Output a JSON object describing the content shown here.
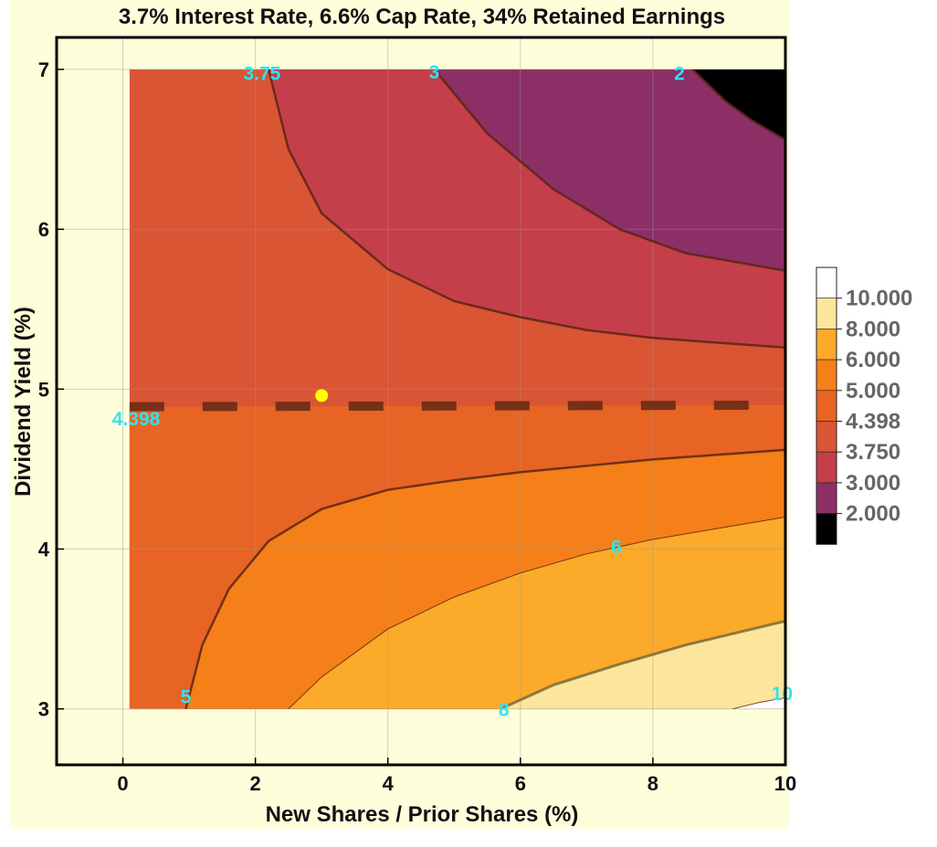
{
  "chart_data": {
    "type": "contour",
    "title": "3.7% Interest Rate, 6.6% Cap Rate, 34% Retained Earnings",
    "xlabel": "New Shares / Prior Shares (%)",
    "ylabel": "Dividend Yield (%)",
    "xlim": [
      -1,
      10
    ],
    "ylim": [
      2.65,
      7.2
    ],
    "data_x_range": [
      0.1,
      10
    ],
    "data_y_range": [
      3,
      7
    ],
    "x_ticks": [
      0,
      2,
      4,
      6,
      8,
      10
    ],
    "y_ticks": [
      3,
      4,
      5,
      6,
      7
    ],
    "grid": true,
    "legend_placement": "right",
    "levels": [
      {
        "label": "10.000",
        "color": "#ffffff"
      },
      {
        "label": "8.000",
        "color": "#fde59b"
      },
      {
        "label": "6.000",
        "color": "#fbaa2a"
      },
      {
        "label": "5.000",
        "color": "#f57f18"
      },
      {
        "label": "4.398",
        "color": "#e76424"
      },
      {
        "label": "3.750",
        "color": "#d95533"
      },
      {
        "label": "3.000",
        "color": "#c43f49"
      },
      {
        "label": "2.000",
        "color": "#8b2f66"
      },
      {
        "label": "",
        "color": "#000000"
      }
    ],
    "contours": [
      {
        "label": "2",
        "points": [
          [
            8.6,
            7
          ],
          [
            9.1,
            6.8
          ],
          [
            9.5,
            6.68
          ],
          [
            10,
            6.56
          ]
        ]
      },
      {
        "label": "3",
        "points": [
          [
            4.7,
            7
          ],
          [
            5.5,
            6.6
          ],
          [
            6.5,
            6.25
          ],
          [
            7.5,
            6.0
          ],
          [
            8.5,
            5.85
          ],
          [
            10,
            5.74
          ]
        ]
      },
      {
        "label": "3.75",
        "points": [
          [
            2.2,
            7
          ],
          [
            2.5,
            6.5
          ],
          [
            3,
            6.1
          ],
          [
            4,
            5.75
          ],
          [
            5,
            5.55
          ],
          [
            6,
            5.45
          ],
          [
            7,
            5.37
          ],
          [
            8,
            5.32
          ],
          [
            10,
            5.26
          ]
        ]
      },
      {
        "label": "4.398",
        "dashed": true,
        "points": [
          [
            0.1,
            4.89
          ],
          [
            10,
            4.9
          ]
        ]
      },
      {
        "label": "5",
        "points": [
          [
            0.95,
            3
          ],
          [
            1.2,
            3.4
          ],
          [
            1.6,
            3.75
          ],
          [
            2.2,
            4.05
          ],
          [
            3,
            4.25
          ],
          [
            4,
            4.37
          ],
          [
            5,
            4.43
          ],
          [
            6,
            4.48
          ],
          [
            7,
            4.52
          ],
          [
            8,
            4.56
          ],
          [
            10,
            4.62
          ]
        ]
      },
      {
        "label": "6",
        "points": [
          [
            2.5,
            3
          ],
          [
            3,
            3.2
          ],
          [
            4,
            3.5
          ],
          [
            5,
            3.7
          ],
          [
            6,
            3.85
          ],
          [
            7,
            3.97
          ],
          [
            8,
            4.06
          ],
          [
            10,
            4.2
          ]
        ]
      },
      {
        "label": "8",
        "points": [
          [
            5.7,
            3
          ],
          [
            6.5,
            3.15
          ],
          [
            7.5,
            3.28
          ],
          [
            8.5,
            3.4
          ],
          [
            10,
            3.55
          ]
        ]
      },
      {
        "label": "10",
        "points": [
          [
            9.2,
            3
          ],
          [
            9.6,
            3.04
          ],
          [
            10,
            3.07
          ]
        ]
      }
    ],
    "marker": {
      "x": 3.0,
      "y": 4.96,
      "color": "#ffff00"
    },
    "contour_labels": [
      {
        "text": "3.75",
        "x": 2.1,
        "y": 6.98
      },
      {
        "text": "3",
        "x": 4.7,
        "y": 6.99
      },
      {
        "text": "2",
        "x": 8.4,
        "y": 6.98
      },
      {
        "text": "4.398",
        "x": 0.2,
        "y": 4.82
      },
      {
        "text": "6",
        "x": 7.45,
        "y": 4.02
      },
      {
        "text": "5",
        "x": 0.95,
        "y": 3.08
      },
      {
        "text": "8",
        "x": 5.75,
        "y": 3.0
      },
      {
        "text": "10",
        "x": 9.95,
        "y": 3.1
      }
    ],
    "label_color": "#2fe3f0"
  }
}
